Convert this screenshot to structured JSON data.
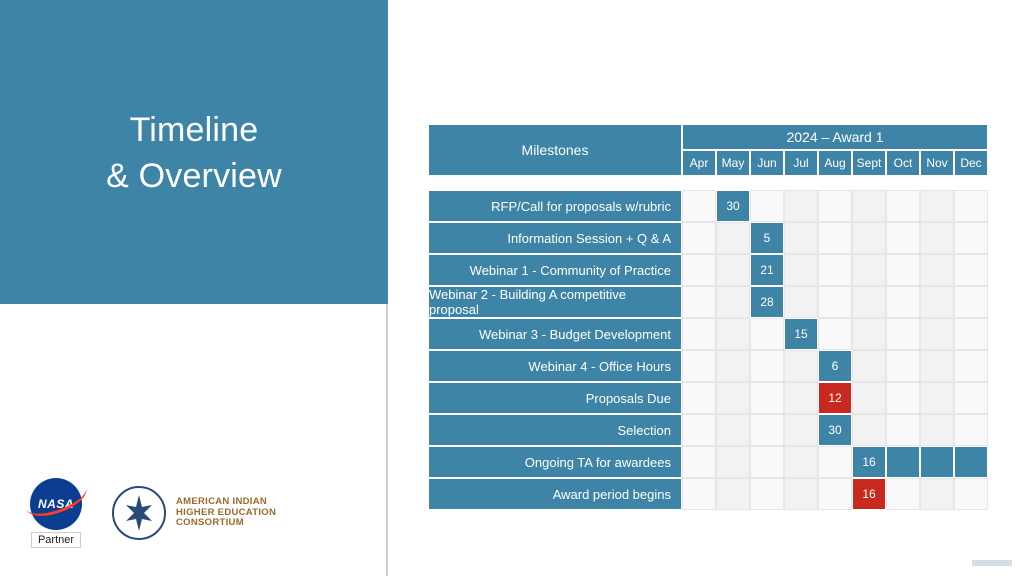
{
  "title": {
    "line1": "Timeline",
    "line2": "& Overview"
  },
  "logos": {
    "nasa_label": "NASA",
    "partner_label": "Partner",
    "aihec_line1": "AMERICAN INDIAN",
    "aihec_line2": "HIGHER EDUCATION",
    "aihec_line3": "CONSORTIUM"
  },
  "colors": {
    "teal": "#3e84a6",
    "red": "#c8291e",
    "grid_light": "#f9f9f9",
    "grid_alt": "#f2f2f2",
    "grid_border": "#e6e6e6",
    "white": "#ffffff"
  },
  "timeline": {
    "header_milestones": "Milestones",
    "header_year": "2024 – Award 1",
    "months": [
      "Apr",
      "May",
      "Jun",
      "Jul",
      "Aug",
      "Sept",
      "Oct",
      "Nov",
      "Dec"
    ],
    "rows": [
      {
        "label": "RFP/Call for proposals w/rubric",
        "markers": [
          {
            "month_index": 1,
            "value": "30",
            "style": "teal"
          }
        ]
      },
      {
        "label": "Information Session + Q & A",
        "markers": [
          {
            "month_index": 2,
            "value": "5",
            "style": "teal"
          }
        ]
      },
      {
        "label": "Webinar 1 - Community of Practice",
        "markers": [
          {
            "month_index": 2,
            "value": "21",
            "style": "teal"
          }
        ]
      },
      {
        "label": "Webinar 2 - Building A competitive proposal",
        "markers": [
          {
            "month_index": 2,
            "value": "28",
            "style": "teal"
          }
        ]
      },
      {
        "label": "Webinar 3 - Budget Development",
        "markers": [
          {
            "month_index": 3,
            "value": "15",
            "style": "teal"
          }
        ]
      },
      {
        "label": "Webinar 4 - Office Hours",
        "markers": [
          {
            "month_index": 4,
            "value": "6",
            "style": "teal"
          }
        ]
      },
      {
        "label": "Proposals Due",
        "markers": [
          {
            "month_index": 4,
            "value": "12",
            "style": "red"
          }
        ]
      },
      {
        "label": "Selection",
        "markers": [
          {
            "month_index": 4,
            "value": "30",
            "style": "teal"
          }
        ]
      },
      {
        "label": "Ongoing TA for awardees",
        "markers": [
          {
            "month_index": 5,
            "value": "16",
            "style": "teal"
          },
          {
            "month_index": 6,
            "value": "",
            "style": "teal"
          },
          {
            "month_index": 7,
            "value": "",
            "style": "teal"
          },
          {
            "month_index": 8,
            "value": "",
            "style": "teal"
          }
        ]
      },
      {
        "label": "Award period begins",
        "markers": [
          {
            "month_index": 5,
            "value": "16",
            "style": "red"
          }
        ]
      }
    ]
  }
}
